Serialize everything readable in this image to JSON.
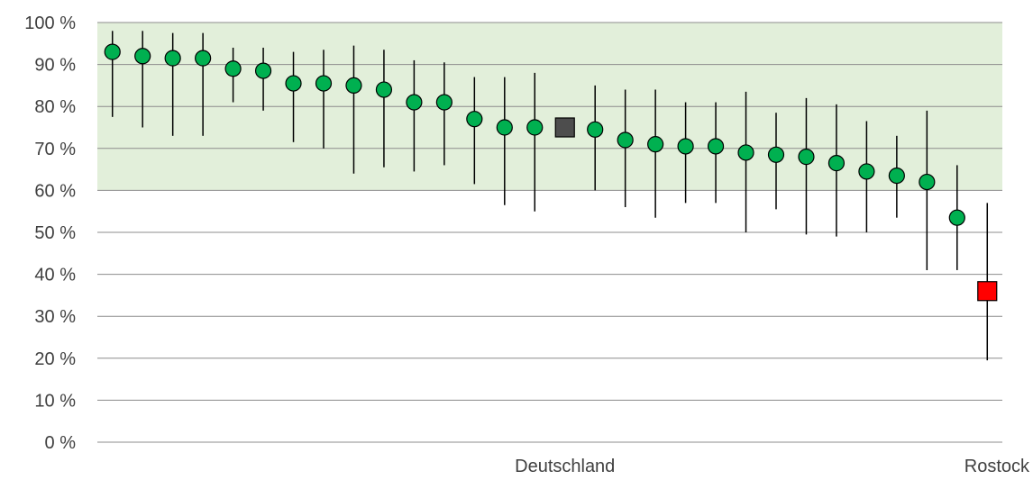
{
  "chart_data": {
    "type": "scatter",
    "title": "",
    "xlabel": "",
    "ylabel": "",
    "ylim": [
      0,
      100
    ],
    "yticks": [
      0,
      10,
      20,
      30,
      40,
      50,
      60,
      70,
      80,
      90,
      100
    ],
    "ytick_labels": [
      "0 %",
      "10 %",
      "20 %",
      "30 %",
      "40 %",
      "50 %",
      "60 %",
      "70 %",
      "80 %",
      "90 %",
      "100 %"
    ],
    "highlight_band": {
      "from": 60,
      "to": 100,
      "color": "#e2efda"
    },
    "grid": true,
    "legend": "none",
    "colors": {
      "point": "#00b050",
      "germany": "#4d4d4d",
      "rostock": "#ff0000",
      "whisker": "#000000"
    },
    "points": [
      {
        "label": "",
        "value": 93,
        "low": 77.5,
        "high": 98,
        "marker": "circle"
      },
      {
        "label": "",
        "value": 92,
        "low": 75,
        "high": 98,
        "marker": "circle"
      },
      {
        "label": "",
        "value": 91.5,
        "low": 73,
        "high": 97.5,
        "marker": "circle"
      },
      {
        "label": "",
        "value": 91.5,
        "low": 73,
        "high": 97.5,
        "marker": "circle"
      },
      {
        "label": "",
        "value": 89,
        "low": 81,
        "high": 94,
        "marker": "circle"
      },
      {
        "label": "",
        "value": 88.5,
        "low": 79,
        "high": 94,
        "marker": "circle"
      },
      {
        "label": "",
        "value": 85.5,
        "low": 71.5,
        "high": 93,
        "marker": "circle"
      },
      {
        "label": "",
        "value": 85.5,
        "low": 70,
        "high": 93.5,
        "marker": "circle"
      },
      {
        "label": "",
        "value": 85,
        "low": 64,
        "high": 94.5,
        "marker": "circle"
      },
      {
        "label": "",
        "value": 84,
        "low": 65.5,
        "high": 93.5,
        "marker": "circle"
      },
      {
        "label": "",
        "value": 81,
        "low": 64.5,
        "high": 91,
        "marker": "circle"
      },
      {
        "label": "",
        "value": 81,
        "low": 66,
        "high": 90.5,
        "marker": "circle"
      },
      {
        "label": "",
        "value": 77,
        "low": 61.5,
        "high": 87,
        "marker": "circle"
      },
      {
        "label": "",
        "value": 75,
        "low": 56.5,
        "high": 87,
        "marker": "circle"
      },
      {
        "label": "",
        "value": 75,
        "low": 55,
        "high": 88,
        "marker": "circle"
      },
      {
        "label": "Deutschland",
        "value": 75,
        "low": null,
        "high": null,
        "marker": "square"
      },
      {
        "label": "",
        "value": 74.5,
        "low": 60,
        "high": 85,
        "marker": "circle"
      },
      {
        "label": "",
        "value": 72,
        "low": 56,
        "high": 84,
        "marker": "circle"
      },
      {
        "label": "",
        "value": 71,
        "low": 53.5,
        "high": 84,
        "marker": "circle"
      },
      {
        "label": "",
        "value": 70.5,
        "low": 57,
        "high": 81,
        "marker": "circle"
      },
      {
        "label": "",
        "value": 70.5,
        "low": 57,
        "high": 81,
        "marker": "circle"
      },
      {
        "label": "",
        "value": 69,
        "low": 50,
        "high": 83.5,
        "marker": "circle"
      },
      {
        "label": "",
        "value": 68.5,
        "low": 55.5,
        "high": 78.5,
        "marker": "circle"
      },
      {
        "label": "",
        "value": 68,
        "low": 49.5,
        "high": 82,
        "marker": "circle"
      },
      {
        "label": "",
        "value": 66.5,
        "low": 49,
        "high": 80.5,
        "marker": "circle"
      },
      {
        "label": "",
        "value": 64.5,
        "low": 50,
        "high": 76.5,
        "marker": "circle"
      },
      {
        "label": "",
        "value": 63.5,
        "low": 53.5,
        "high": 73,
        "marker": "circle"
      },
      {
        "label": "",
        "value": 62,
        "low": 41,
        "high": 79,
        "marker": "circle"
      },
      {
        "label": "",
        "value": 53.5,
        "low": 41,
        "high": 66,
        "marker": "circle"
      },
      {
        "label": "Rostock",
        "value": 36,
        "low": 19.5,
        "high": 57,
        "marker": "square"
      }
    ]
  }
}
